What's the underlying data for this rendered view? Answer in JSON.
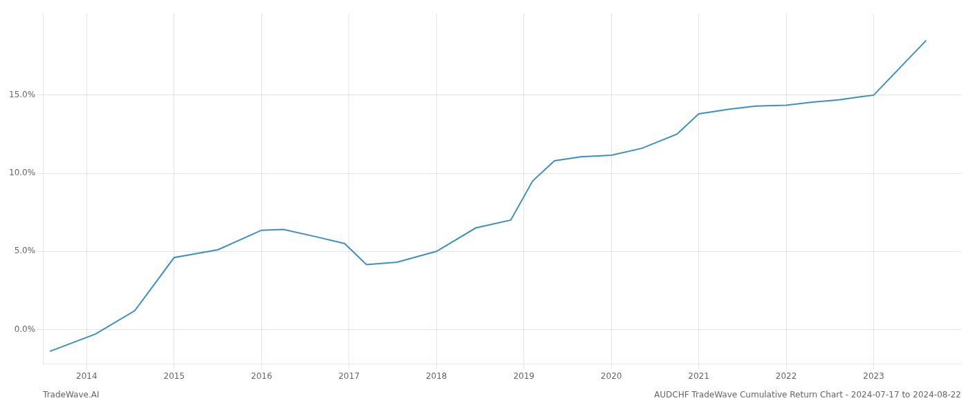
{
  "chart_data": {
    "type": "line",
    "title": "AUDCHF TradeWave Cumulative Return Chart - 2024-07-17 to 2024-08-22",
    "annotations": [
      "TradeWave.AI"
    ],
    "color": "#3d8fbf",
    "x": [
      2013.58,
      2014.1,
      2014.55,
      2015.0,
      2015.5,
      2016.0,
      2016.25,
      2016.65,
      2016.95,
      2017.2,
      2017.55,
      2018.0,
      2018.45,
      2018.85,
      2019.1,
      2019.35,
      2019.65,
      2020.0,
      2020.35,
      2020.75,
      2021.0,
      2021.35,
      2021.65,
      2022.0,
      2022.3,
      2022.6,
      2022.85,
      2023.0,
      2023.6
    ],
    "values": [
      -1.4,
      -0.3,
      1.2,
      4.6,
      5.1,
      6.35,
      6.4,
      5.9,
      5.5,
      4.15,
      4.3,
      5.0,
      6.5,
      7.0,
      9.5,
      10.8,
      11.05,
      11.15,
      11.6,
      12.5,
      13.8,
      14.1,
      14.3,
      14.35,
      14.55,
      14.7,
      14.9,
      15.0,
      18.5
    ],
    "xlim": [
      2013.5,
      2024.0
    ],
    "ylim": [
      -2.2,
      20.2
    ],
    "xticks": [
      2014,
      2015,
      2016,
      2017,
      2018,
      2019,
      2020,
      2021,
      2022,
      2023
    ],
    "yticks": [
      {
        "value": 0.0,
        "label": "0.0%"
      },
      {
        "value": 5.0,
        "label": "5.0%"
      },
      {
        "value": 10.0,
        "label": "10.0%"
      },
      {
        "value": 15.0,
        "label": "15.0%"
      }
    ],
    "grid": true
  }
}
